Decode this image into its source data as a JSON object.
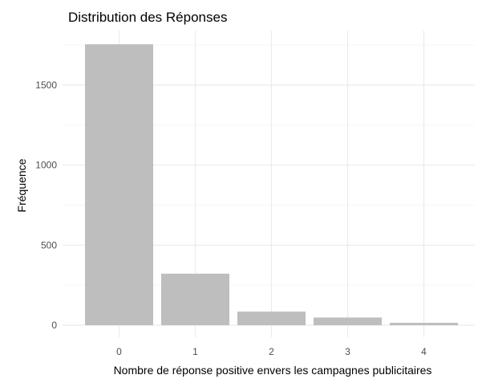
{
  "chart_data": {
    "type": "bar",
    "title": "Distribution des Réponses",
    "xlabel": "Nombre de réponse positive envers les campagnes publicitaires",
    "ylabel": "Fréquence",
    "categories": [
      "0",
      "1",
      "2",
      "3",
      "4"
    ],
    "values": [
      1755,
      322,
      85,
      48,
      15
    ],
    "ylim": [
      0,
      1800
    ],
    "yticks": [
      0,
      500,
      1000,
      1500
    ],
    "grid": true,
    "legend": "none",
    "colors": {
      "bar": "#bebebe",
      "grid_major": "#ebebeb",
      "grid_minor": "#f5f5f5",
      "background": "#ffffff"
    }
  }
}
